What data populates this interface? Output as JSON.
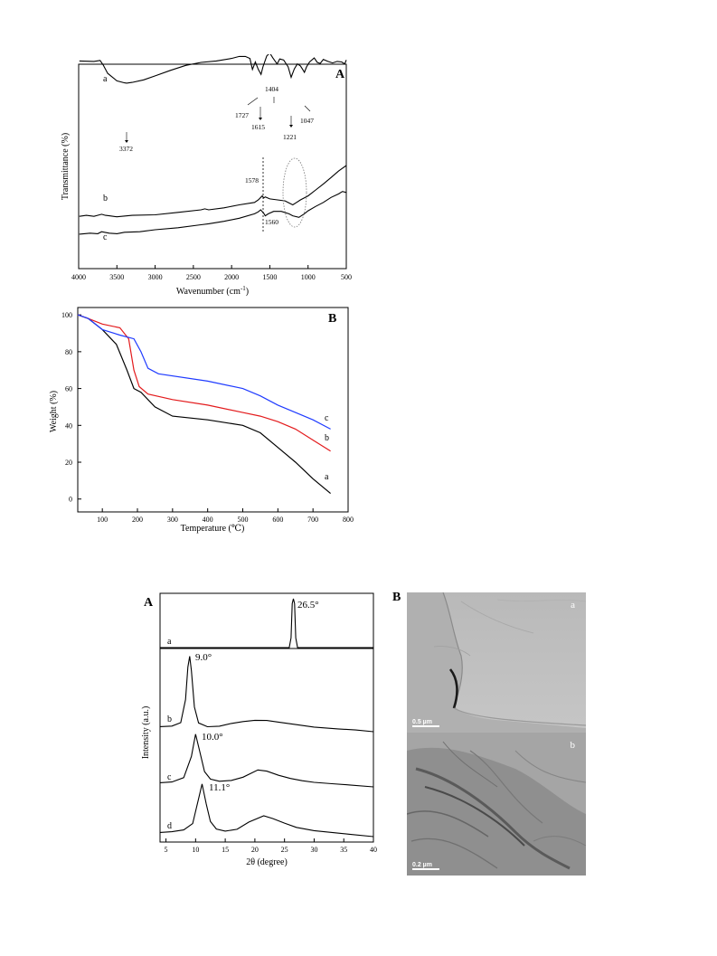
{
  "chart_data": [
    {
      "type": "line",
      "panel_label": "A",
      "xlabel": "Wavenumber (cm",
      "xlabel_sup": "-1",
      "xlabel_end": ")",
      "ylabel": "Transmittance (%)",
      "xlim": [
        4000,
        500
      ],
      "x_reversed": true,
      "x_ticks": [
        4000,
        3500,
        3000,
        2500,
        2000,
        1500,
        1000,
        500
      ],
      "y_ticks_shown": false,
      "series": [
        {
          "name": "a",
          "color": "#000000",
          "points": [
            [
              3990,
              52
            ],
            [
              3800,
              51
            ],
            [
              3720,
              53
            ],
            [
              3680,
              44
            ],
            [
              3620,
              27
            ],
            [
              3500,
              12
            ],
            [
              3400,
              8
            ],
            [
              3372,
              7.5
            ],
            [
              3300,
              9
            ],
            [
              3150,
              14
            ],
            [
              3000,
              22
            ],
            [
              2800,
              33
            ],
            [
              2600,
              43
            ],
            [
              2400,
              49
            ],
            [
              2200,
              52
            ],
            [
              2000,
              57
            ],
            [
              1900,
              61
            ],
            [
              1820,
              61
            ],
            [
              1760,
              57
            ],
            [
              1727,
              35
            ],
            [
              1690,
              50
            ],
            [
              1650,
              35
            ],
            [
              1615,
              25
            ],
            [
              1590,
              40
            ],
            [
              1540,
              62
            ],
            [
              1500,
              68
            ],
            [
              1460,
              58
            ],
            [
              1404,
              46
            ],
            [
              1370,
              56
            ],
            [
              1320,
              54
            ],
            [
              1260,
              40
            ],
            [
              1221,
              19
            ],
            [
              1180,
              36
            ],
            [
              1140,
              46
            ],
            [
              1100,
              42
            ],
            [
              1070,
              35
            ],
            [
              1047,
              29
            ],
            [
              1020,
              40
            ],
            [
              980,
              50
            ],
            [
              920,
              58
            ],
            [
              880,
              49
            ],
            [
              840,
              47
            ],
            [
              800,
              55
            ],
            [
              740,
              51
            ],
            [
              680,
              48
            ],
            [
              620,
              51
            ],
            [
              560,
              50
            ],
            [
              520,
              46
            ],
            [
              500,
              54
            ]
          ]
        },
        {
          "name": "b",
          "color": "#000000",
          "points": [
            [
              3990,
              -53
            ],
            [
              3900,
              -51
            ],
            [
              3800,
              -53
            ],
            [
              3700,
              -49
            ],
            [
              3650,
              -51
            ],
            [
              3600,
              -52
            ],
            [
              3500,
              -54
            ],
            [
              3300,
              -51
            ],
            [
              3000,
              -50
            ],
            [
              2700,
              -45
            ],
            [
              2400,
              -40
            ],
            [
              2350,
              -38
            ],
            [
              2300,
              -40
            ],
            [
              2100,
              -36
            ],
            [
              1900,
              -30
            ],
            [
              1700,
              -25
            ],
            [
              1650,
              -20
            ],
            [
              1600,
              -12
            ],
            [
              1578,
              -16
            ],
            [
              1560,
              -14
            ],
            [
              1500,
              -18
            ],
            [
              1400,
              -20
            ],
            [
              1300,
              -22
            ],
            [
              1200,
              -30
            ],
            [
              1150,
              -25
            ],
            [
              1100,
              -20
            ],
            [
              1000,
              -12
            ],
            [
              900,
              0
            ],
            [
              800,
              12
            ],
            [
              700,
              25
            ],
            [
              600,
              38
            ],
            [
              500,
              49
            ]
          ]
        },
        {
          "name": "c",
          "color": "#000000",
          "points": [
            [
              3990,
              -89
            ],
            [
              3850,
              -87
            ],
            [
              3750,
              -88
            ],
            [
              3700,
              -84
            ],
            [
              3600,
              -87
            ],
            [
              3500,
              -88
            ],
            [
              3400,
              -85
            ],
            [
              3200,
              -84
            ],
            [
              3000,
              -80
            ],
            [
              2700,
              -76
            ],
            [
              2400,
              -70
            ],
            [
              2300,
              -68
            ],
            [
              2100,
              -63
            ],
            [
              1900,
              -57
            ],
            [
              1700,
              -48
            ],
            [
              1650,
              -44
            ],
            [
              1620,
              -40
            ],
            [
              1580,
              -47
            ],
            [
              1560,
              -52
            ],
            [
              1520,
              -48
            ],
            [
              1450,
              -43
            ],
            [
              1350,
              -43
            ],
            [
              1250,
              -48
            ],
            [
              1200,
              -52
            ],
            [
              1120,
              -55
            ],
            [
              1050,
              -48
            ],
            [
              1000,
              -42
            ],
            [
              900,
              -33
            ],
            [
              800,
              -25
            ],
            [
              700,
              -15
            ],
            [
              600,
              -8
            ],
            [
              550,
              -3
            ],
            [
              500,
              -5
            ]
          ]
        }
      ],
      "annotations": [
        "3372",
        "1727",
        "1615",
        "1404",
        "1221",
        "1047",
        "1578",
        "1560"
      ]
    },
    {
      "type": "line",
      "panel_label": "B",
      "xlabel": "Temperature (℃)",
      "ylabel": "Weight (%)",
      "xlim": [
        30,
        800
      ],
      "ylim": [
        -7,
        104
      ],
      "x_ticks": [
        100,
        200,
        300,
        400,
        500,
        600,
        700,
        800
      ],
      "y_ticks": [
        0,
        20,
        40,
        60,
        80,
        100
      ],
      "series": [
        {
          "name": "a",
          "color": "#000000",
          "points": [
            [
              30,
              100
            ],
            [
              60,
              98
            ],
            [
              100,
              92
            ],
            [
              140,
              84
            ],
            [
              170,
              70
            ],
            [
              190,
              60
            ],
            [
              210,
              58
            ],
            [
              250,
              50
            ],
            [
              300,
              45
            ],
            [
              400,
              43
            ],
            [
              500,
              40
            ],
            [
              550,
              36
            ],
            [
              600,
              28
            ],
            [
              650,
              20
            ],
            [
              700,
              11
            ],
            [
              750,
              3
            ]
          ]
        },
        {
          "name": "b",
          "color": "#e31a1c",
          "points": [
            [
              30,
              100
            ],
            [
              60,
              98
            ],
            [
              100,
              95
            ],
            [
              150,
              93
            ],
            [
              175,
              87
            ],
            [
              190,
              70
            ],
            [
              205,
              61
            ],
            [
              230,
              57
            ],
            [
              300,
              54
            ],
            [
              400,
              51
            ],
            [
              500,
              47
            ],
            [
              550,
              45
            ],
            [
              600,
              42
            ],
            [
              650,
              38
            ],
            [
              700,
              32
            ],
            [
              750,
              26
            ]
          ]
        },
        {
          "name": "c",
          "color": "#1f3bff",
          "points": [
            [
              30,
              100
            ],
            [
              60,
              98
            ],
            [
              100,
              92
            ],
            [
              150,
              89
            ],
            [
              190,
              87
            ],
            [
              210,
              80
            ],
            [
              230,
              71
            ],
            [
              260,
              68
            ],
            [
              400,
              64
            ],
            [
              500,
              60
            ],
            [
              550,
              56
            ],
            [
              600,
              51
            ],
            [
              650,
              47
            ],
            [
              700,
              43
            ],
            [
              750,
              38
            ]
          ]
        }
      ]
    },
    {
      "type": "line",
      "panel_label": "A",
      "xlabel": "2θ (degree)",
      "ylabel": "Intensity (a.u.)",
      "xlim": [
        4,
        40
      ],
      "x_ticks": [
        5,
        10,
        15,
        20,
        25,
        30,
        35,
        40
      ],
      "y_ticks_shown": false,
      "series": [
        {
          "name": "a",
          "color": "#000000",
          "points": [
            [
              4,
              0
            ],
            [
              25.8,
              0
            ],
            [
              26.1,
              20
            ],
            [
              26.3,
              90
            ],
            [
              26.5,
              100
            ],
            [
              26.7,
              90
            ],
            [
              26.9,
              20
            ],
            [
              27.2,
              0
            ],
            [
              40,
              0
            ]
          ]
        },
        {
          "name": "b",
          "color": "#000000",
          "points": [
            [
              4,
              2
            ],
            [
              6,
              3
            ],
            [
              7.5,
              8
            ],
            [
              8.3,
              40
            ],
            [
              8.7,
              85
            ],
            [
              9.0,
              100
            ],
            [
              9.3,
              80
            ],
            [
              9.8,
              30
            ],
            [
              10.5,
              8
            ],
            [
              12,
              3
            ],
            [
              14,
              4
            ],
            [
              16,
              8
            ],
            [
              18,
              11
            ],
            [
              20,
              13
            ],
            [
              22,
              13
            ],
            [
              24,
              11
            ],
            [
              27,
              8
            ],
            [
              30,
              5
            ],
            [
              34,
              3
            ],
            [
              37,
              2
            ],
            [
              40,
              0
            ]
          ]
        },
        {
          "name": "c",
          "color": "#000000",
          "points": [
            [
              4,
              1
            ],
            [
              6,
              3
            ],
            [
              8,
              12
            ],
            [
              9.3,
              55
            ],
            [
              10.0,
              100
            ],
            [
              10.6,
              70
            ],
            [
              11.5,
              25
            ],
            [
              12.5,
              10
            ],
            [
              14,
              6
            ],
            [
              16,
              8
            ],
            [
              18,
              15
            ],
            [
              20.5,
              30
            ],
            [
              22,
              28
            ],
            [
              24,
              20
            ],
            [
              26,
              14
            ],
            [
              28,
              10
            ],
            [
              30,
              7
            ],
            [
              33,
              5
            ],
            [
              36,
              3
            ],
            [
              40,
              0
            ]
          ]
        },
        {
          "name": "d",
          "color": "#000000",
          "points": [
            [
              4,
              1
            ],
            [
              6,
              3
            ],
            [
              8,
              7
            ],
            [
              9.5,
              20
            ],
            [
              10.5,
              70
            ],
            [
              11.1,
              100
            ],
            [
              11.8,
              60
            ],
            [
              12.5,
              25
            ],
            [
              13.5,
              10
            ],
            [
              15,
              6
            ],
            [
              17,
              10
            ],
            [
              19,
              25
            ],
            [
              21.5,
              38
            ],
            [
              23,
              33
            ],
            [
              25,
              24
            ],
            [
              27,
              16
            ],
            [
              30,
              10
            ],
            [
              33,
              7
            ],
            [
              36,
              4
            ],
            [
              40,
              0
            ]
          ]
        }
      ],
      "annotations": [
        "26.5°",
        "9.0°",
        "10.0°",
        "11.1°"
      ]
    }
  ],
  "tem_panel": {
    "label": "B",
    "images": [
      {
        "label": "a",
        "scale_bar": "0.5 µm"
      },
      {
        "label": "b",
        "scale_bar": "0.2 µm"
      }
    ]
  }
}
